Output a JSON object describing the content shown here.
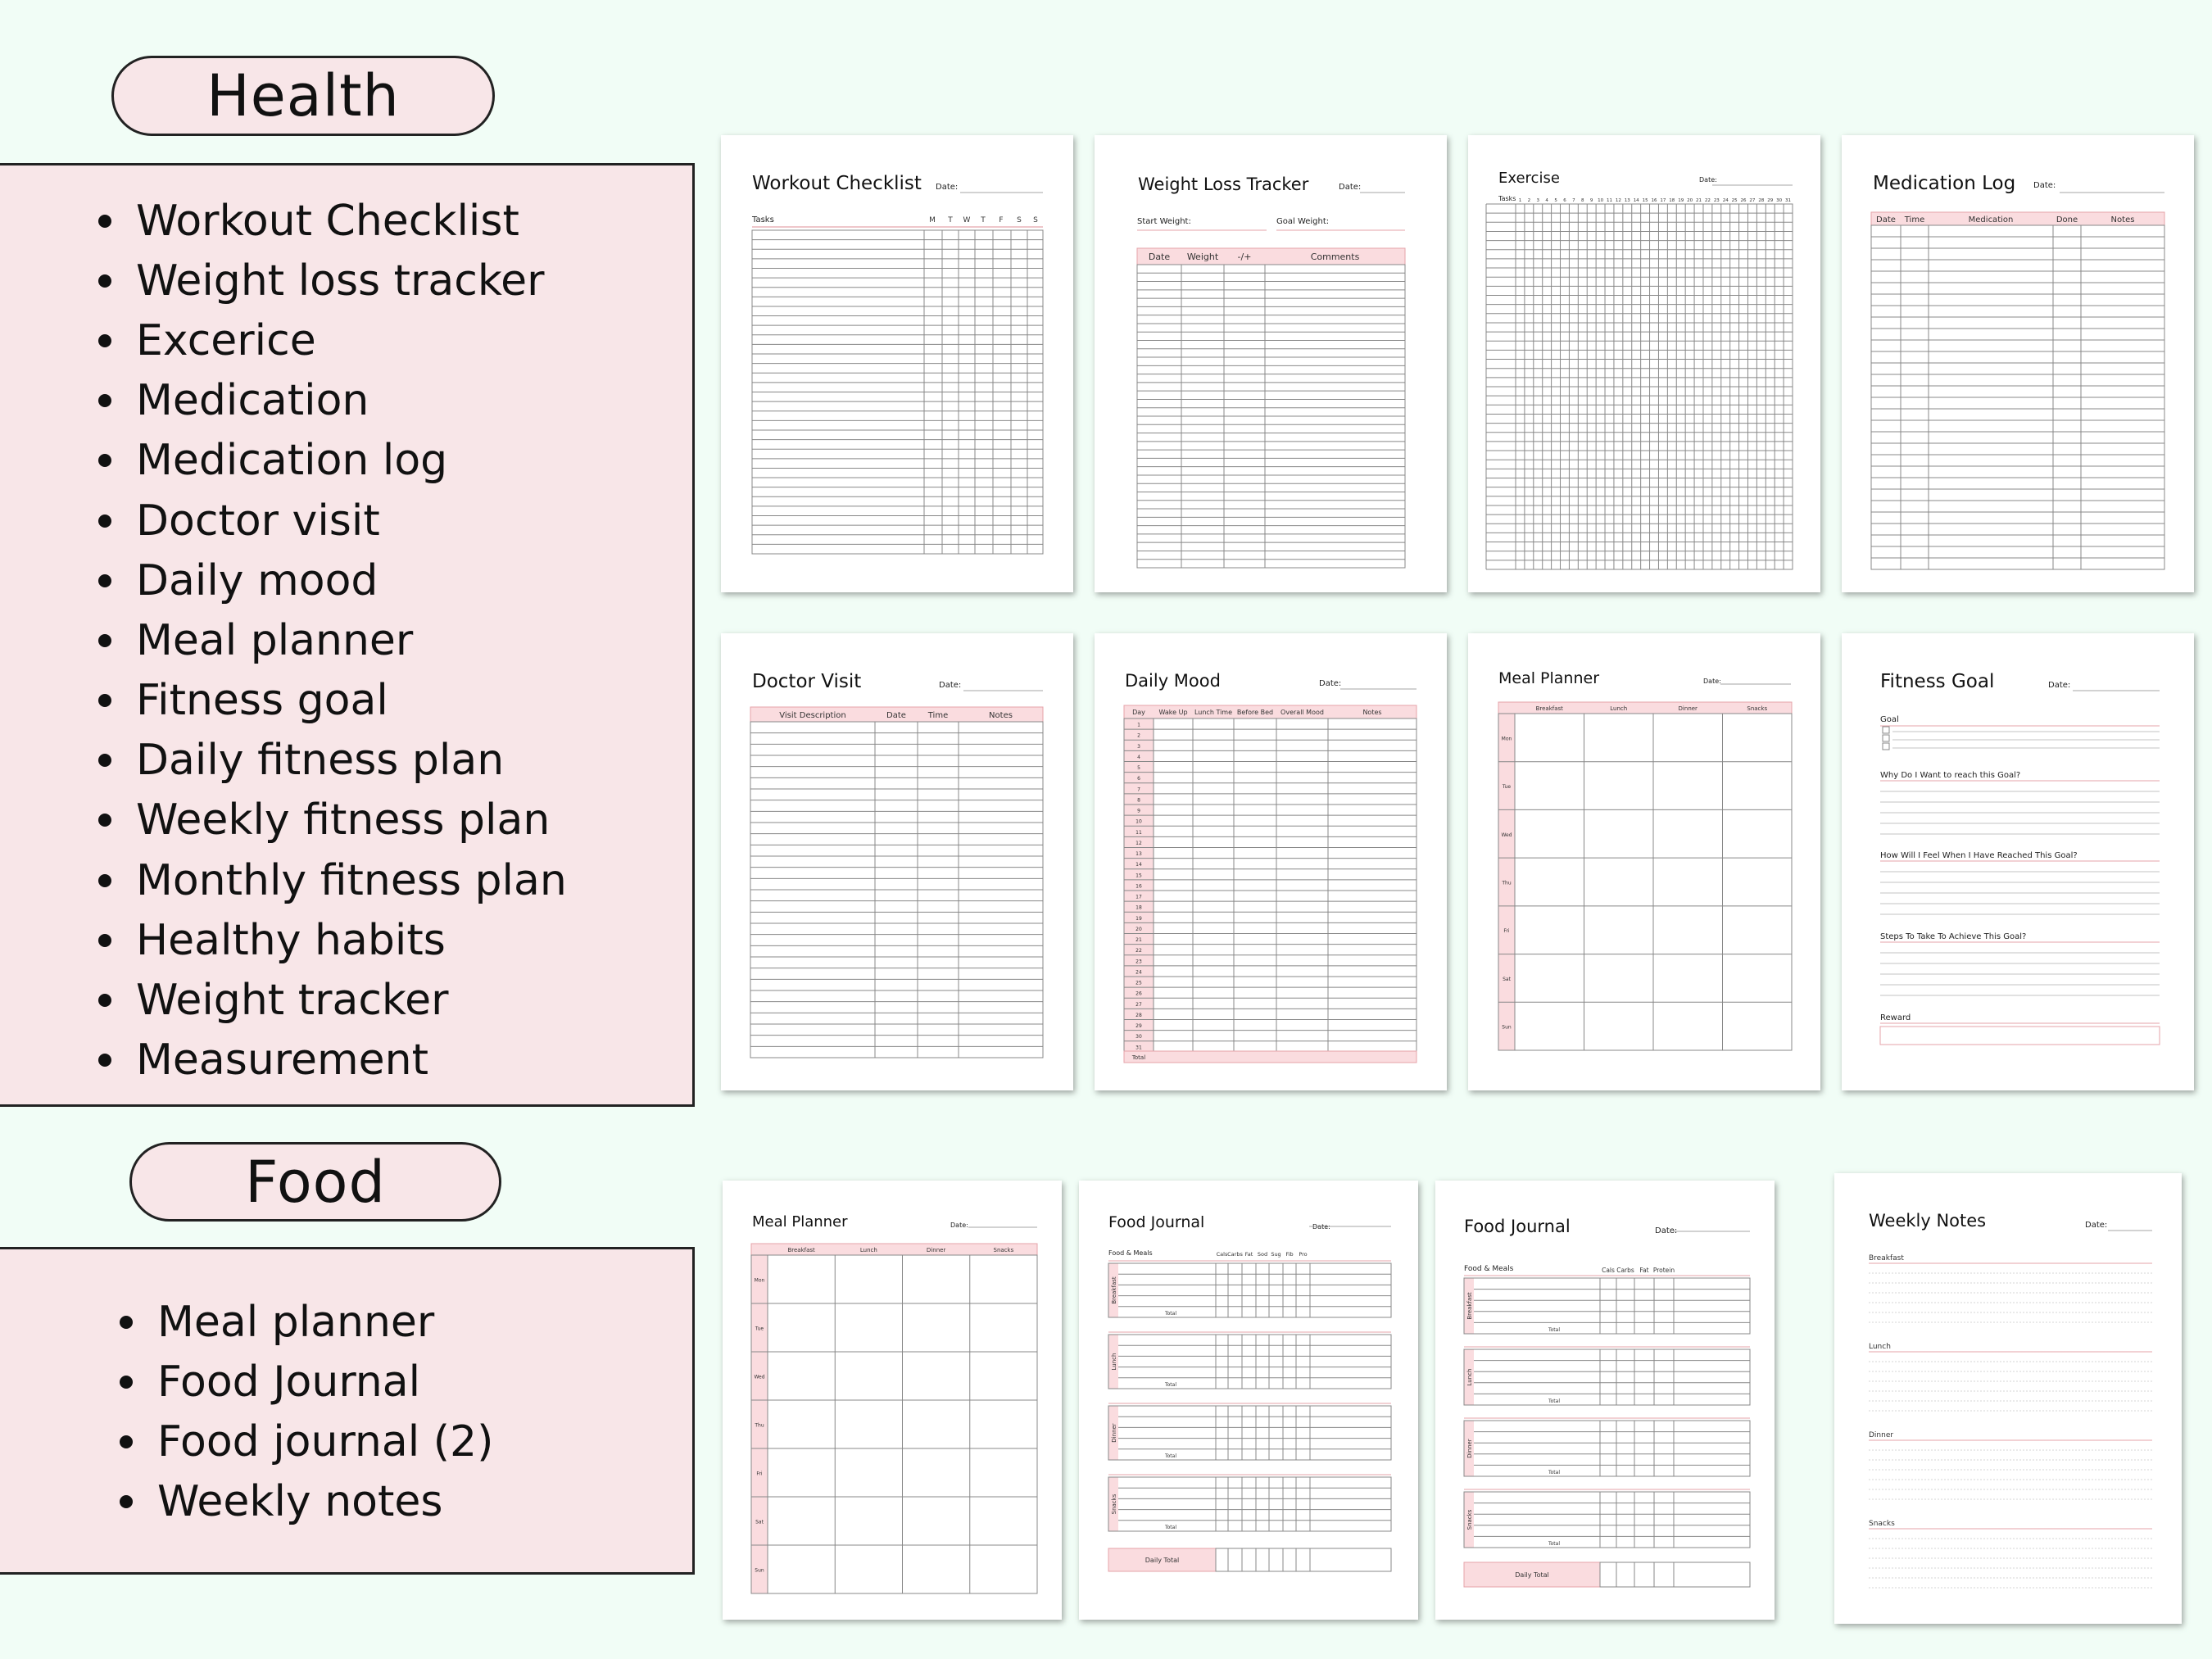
{
  "health": {
    "heading": "Health",
    "items": [
      "Workout Checklist",
      "Weight loss tracker",
      "Excerice",
      "Medication",
      "Medication log",
      "Doctor visit",
      "Daily mood",
      "Meal planner",
      "Fitness goal",
      "Daily fitness plan",
      "Weekly fitness plan",
      "Monthly fitness plan",
      "Healthy habits",
      "Weight tracker",
      "Measurement"
    ]
  },
  "food": {
    "heading": "Food",
    "items": [
      "Meal planner",
      "Food Journal",
      "Food journal (2)",
      "Weekly notes"
    ]
  },
  "colors": {
    "accent": "#f8e6e8",
    "pink_line": "#e5a3aa",
    "pink_fill": "#fadcdf",
    "background": "#f1fdf6"
  },
  "pages": {
    "date_label": "Date:",
    "workout": {
      "title": "Workout Checklist",
      "tasks": "Tasks",
      "days": [
        "M",
        "T",
        "W",
        "T",
        "F",
        "S",
        "S"
      ]
    },
    "weightloss": {
      "title": "Weight Loss Tracker",
      "start": "Start Weight:",
      "goal": "Goal Weight:",
      "cols": [
        "Date",
        "Weight",
        "-/+",
        "Comments"
      ]
    },
    "exercise": {
      "title": "Exercise",
      "tasks": "Tasks"
    },
    "medlog": {
      "title": "Medication Log",
      "cols": [
        "Date",
        "Time",
        "Medication",
        "Done",
        "Notes"
      ]
    },
    "doctor": {
      "title": "Doctor Visit",
      "cols": [
        "Visit Description",
        "Date",
        "Time",
        "Notes"
      ]
    },
    "mood": {
      "title": "Daily Mood",
      "cols": [
        "Day",
        "Wake Up",
        "Lunch Time",
        "Before Bed",
        "Overall Mood",
        "Notes"
      ],
      "total": "Total"
    },
    "meal": {
      "title": "Meal Planner",
      "cols": [
        "Breakfast",
        "Lunch",
        "Dinner",
        "Snacks"
      ],
      "days": [
        "Mon",
        "Tue",
        "Wed",
        "Thu",
        "Fri",
        "Sat",
        "Sun"
      ]
    },
    "fitness": {
      "title": "Fitness Goal",
      "goal": "Goal",
      "q1": "Why Do I Want to reach this Goal?",
      "q2": "How Will I Feel When I Have Reached This Goal?",
      "q3": "Steps To Take To Achieve This Goal?",
      "reward": "Reward"
    },
    "journal1": {
      "title": "Food Journal",
      "food_meals": "Food & Meals",
      "cols": [
        "Cals",
        "Carbs",
        "Fat",
        "Sod",
        "Sug",
        "Fib",
        "Pro"
      ],
      "sections": [
        "Breakfast",
        "Lunch",
        "Dinner",
        "Snacks"
      ],
      "total": "Total",
      "daily_total": "Daily Total"
    },
    "journal2": {
      "title": "Food Journal",
      "food_meals": "Food & Meals",
      "cols": [
        "Cals",
        "Carbs",
        "Fat",
        "Protein"
      ],
      "sections": [
        "Breakfast",
        "Lunch",
        "Dinner",
        "Snacks"
      ],
      "total": "Total",
      "daily_total": "Daily Total"
    },
    "notes": {
      "title": "Weekly Notes",
      "sections": [
        "Breakfast",
        "Lunch",
        "Dinner",
        "Snacks"
      ]
    }
  }
}
